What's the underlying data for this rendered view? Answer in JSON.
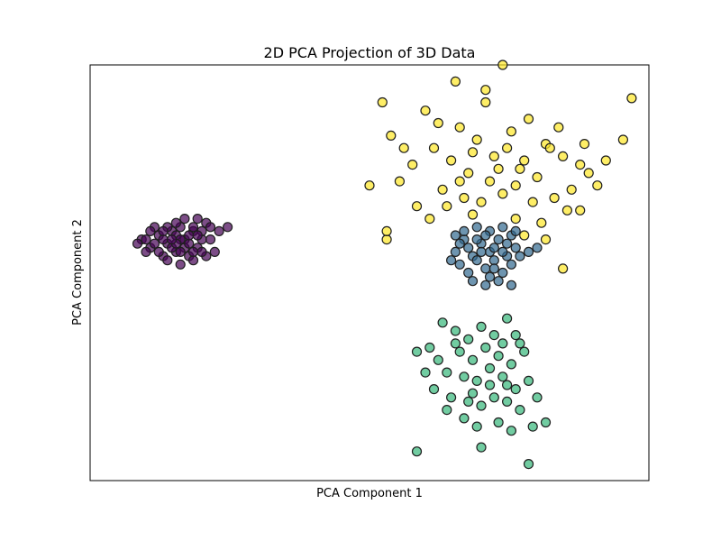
{
  "chart_data": {
    "type": "scatter",
    "title": "2D PCA Projection of 3D Data",
    "xlabel": "PCA Component 1",
    "ylabel": "PCA Component 2",
    "xlim": [
      -7.0,
      6.0
    ],
    "ylim": [
      -4.5,
      5.5
    ],
    "grid": false,
    "legend": "none",
    "ticks_visible": false,
    "point_opacity": 0.7,
    "series": [
      {
        "color": "#440154",
        "points": [
          [
            -5.8,
            1.3
          ],
          [
            -5.6,
            1.1
          ],
          [
            -5.4,
            1.4
          ],
          [
            -5.2,
            1.2
          ],
          [
            -5.0,
            1.0
          ],
          [
            -4.8,
            1.3
          ],
          [
            -4.6,
            1.5
          ],
          [
            -4.5,
            1.1
          ],
          [
            -5.3,
            0.9
          ],
          [
            -5.1,
            1.5
          ],
          [
            -5.5,
            1.6
          ],
          [
            -4.9,
            1.6
          ],
          [
            -4.7,
            0.9
          ],
          [
            -5.7,
            1.0
          ],
          [
            -4.4,
            1.3
          ],
          [
            -5.2,
            0.8
          ],
          [
            -4.6,
            0.8
          ],
          [
            -4.2,
            1.3
          ],
          [
            -4.0,
            1.5
          ],
          [
            -4.3,
            1.7
          ],
          [
            -5.0,
            1.4
          ],
          [
            -5.3,
            1.3
          ],
          [
            -4.8,
            1.1
          ],
          [
            -4.7,
            1.2
          ],
          [
            -5.5,
            1.2
          ],
          [
            -5.9,
            1.2
          ],
          [
            -4.3,
            0.9
          ],
          [
            -4.9,
            0.7
          ],
          [
            -5.6,
            1.5
          ],
          [
            -4.5,
            1.8
          ],
          [
            -5.0,
            1.7
          ],
          [
            -4.6,
            1.6
          ],
          [
            -5.4,
            1.0
          ],
          [
            -5.1,
            1.1
          ],
          [
            -4.4,
            1.0
          ],
          [
            -4.1,
            1.0
          ],
          [
            -4.8,
            1.8
          ],
          [
            -5.2,
            1.6
          ],
          [
            -5.7,
            1.3
          ],
          [
            -4.2,
            1.6
          ],
          [
            -3.8,
            1.6
          ],
          [
            -4.4,
            1.5
          ],
          [
            -4.9,
            1.3
          ],
          [
            -5.3,
            1.5
          ],
          [
            -4.7,
            1.4
          ],
          [
            -5.0,
            1.2
          ],
          [
            -4.5,
            1.4
          ],
          [
            -5.1,
            1.3
          ],
          [
            -4.6,
            1.0
          ],
          [
            -4.9,
            1.0
          ]
        ]
      },
      {
        "color": "#31688e",
        "points": [
          [
            1.5,
            1.0
          ],
          [
            1.7,
            1.3
          ],
          [
            1.9,
            0.9
          ],
          [
            2.1,
            1.2
          ],
          [
            2.3,
            1.0
          ],
          [
            2.5,
            1.3
          ],
          [
            2.7,
            0.9
          ],
          [
            2.9,
            1.1
          ],
          [
            1.6,
            0.7
          ],
          [
            1.8,
            0.5
          ],
          [
            2.0,
            0.8
          ],
          [
            2.2,
            0.6
          ],
          [
            2.4,
            0.8
          ],
          [
            2.6,
            0.5
          ],
          [
            2.8,
            0.7
          ],
          [
            1.4,
            0.8
          ],
          [
            3.0,
            0.9
          ],
          [
            1.7,
            1.5
          ],
          [
            2.0,
            1.6
          ],
          [
            2.3,
            1.5
          ],
          [
            2.6,
            1.6
          ],
          [
            2.8,
            1.4
          ],
          [
            1.9,
            0.3
          ],
          [
            2.2,
            0.2
          ],
          [
            2.5,
            0.3
          ],
          [
            2.8,
            0.2
          ],
          [
            2.1,
            1.0
          ],
          [
            2.4,
            1.1
          ],
          [
            2.6,
            1.0
          ],
          [
            1.8,
            1.1
          ],
          [
            2.0,
            1.3
          ],
          [
            2.2,
            1.4
          ],
          [
            2.4,
            0.6
          ],
          [
            2.7,
            1.2
          ],
          [
            1.6,
            1.2
          ],
          [
            3.2,
            1.0
          ],
          [
            3.4,
            1.1
          ],
          [
            2.9,
            1.5
          ],
          [
            1.5,
            1.4
          ],
          [
            2.3,
            0.4
          ]
        ]
      },
      {
        "color": "#35b779",
        "points": [
          [
            1.2,
            -0.7
          ],
          [
            1.5,
            -0.9
          ],
          [
            1.8,
            -1.1
          ],
          [
            2.1,
            -0.8
          ],
          [
            2.4,
            -1.0
          ],
          [
            2.7,
            -0.6
          ],
          [
            3.0,
            -1.2
          ],
          [
            1.6,
            -1.4
          ],
          [
            1.9,
            -1.6
          ],
          [
            2.2,
            -1.3
          ],
          [
            2.5,
            -1.5
          ],
          [
            2.8,
            -1.7
          ],
          [
            3.1,
            -1.4
          ],
          [
            1.3,
            -1.9
          ],
          [
            1.7,
            -2.0
          ],
          [
            2.0,
            -2.1
          ],
          [
            2.3,
            -2.2
          ],
          [
            2.6,
            -2.0
          ],
          [
            2.9,
            -2.3
          ],
          [
            3.2,
            -2.1
          ],
          [
            1.4,
            -2.5
          ],
          [
            1.8,
            -2.6
          ],
          [
            2.1,
            -2.7
          ],
          [
            2.4,
            -2.5
          ],
          [
            2.7,
            -2.6
          ],
          [
            3.0,
            -2.8
          ],
          [
            3.4,
            -2.5
          ],
          [
            1.1,
            -1.6
          ],
          [
            0.9,
            -1.3
          ],
          [
            0.6,
            -1.4
          ],
          [
            0.8,
            -1.9
          ],
          [
            1.0,
            -2.3
          ],
          [
            1.3,
            -2.8
          ],
          [
            1.7,
            -3.0
          ],
          [
            2.0,
            -3.2
          ],
          [
            2.5,
            -3.1
          ],
          [
            2.8,
            -3.3
          ],
          [
            3.3,
            -3.2
          ],
          [
            3.6,
            -3.1
          ],
          [
            1.5,
            -1.2
          ],
          [
            2.3,
            -1.8
          ],
          [
            2.6,
            -1.2
          ],
          [
            1.9,
            -2.4
          ],
          [
            2.7,
            -2.2
          ],
          [
            0.6,
            -3.8
          ],
          [
            2.1,
            -3.7
          ],
          [
            3.2,
            -4.1
          ],
          [
            2.9,
            -1.0
          ]
        ]
      },
      {
        "color": "#fde725",
        "points": [
          [
            -0.5,
            2.6
          ],
          [
            -0.2,
            4.6
          ],
          [
            0.0,
            3.8
          ],
          [
            0.2,
            2.7
          ],
          [
            0.5,
            3.1
          ],
          [
            0.8,
            4.4
          ],
          [
            1.0,
            3.5
          ],
          [
            1.2,
            2.5
          ],
          [
            1.4,
            3.2
          ],
          [
            1.6,
            4.0
          ],
          [
            1.8,
            2.9
          ],
          [
            2.0,
            3.7
          ],
          [
            2.2,
            4.6
          ],
          [
            2.4,
            3.3
          ],
          [
            2.6,
            2.4
          ],
          [
            2.8,
            3.9
          ],
          [
            3.0,
            3.0
          ],
          [
            3.2,
            4.2
          ],
          [
            3.4,
            2.8
          ],
          [
            3.6,
            3.6
          ],
          [
            3.8,
            2.3
          ],
          [
            4.0,
            3.3
          ],
          [
            4.2,
            2.5
          ],
          [
            4.4,
            3.1
          ],
          [
            4.6,
            2.9
          ],
          [
            4.8,
            2.6
          ],
          [
            5.0,
            3.2
          ],
          [
            5.4,
            3.7
          ],
          [
            5.6,
            4.7
          ],
          [
            1.5,
            5.1
          ],
          [
            2.2,
            4.9
          ],
          [
            2.6,
            5.5
          ],
          [
            1.9,
            1.9
          ],
          [
            2.9,
            1.8
          ],
          [
            3.5,
            1.7
          ],
          [
            4.1,
            2.0
          ],
          [
            4.0,
            0.6
          ],
          [
            -0.1,
            1.3
          ],
          [
            0.6,
            2.1
          ],
          [
            0.9,
            1.8
          ],
          [
            1.3,
            2.1
          ],
          [
            1.7,
            2.3
          ],
          [
            2.1,
            2.2
          ],
          [
            2.7,
            3.5
          ],
          [
            3.1,
            3.2
          ],
          [
            3.3,
            2.2
          ],
          [
            3.9,
            4.0
          ],
          [
            4.5,
            3.6
          ],
          [
            0.3,
            3.5
          ],
          [
            1.1,
            4.1
          ],
          [
            2.5,
            3.0
          ],
          [
            2.9,
            2.6
          ],
          [
            3.7,
            3.5
          ],
          [
            -0.1,
            1.5
          ],
          [
            4.4,
            2.0
          ],
          [
            3.1,
            1.4
          ],
          [
            1.6,
            2.7
          ],
          [
            2.3,
            2.7
          ],
          [
            1.9,
            3.4
          ],
          [
            3.6,
            1.3
          ]
        ]
      }
    ]
  }
}
